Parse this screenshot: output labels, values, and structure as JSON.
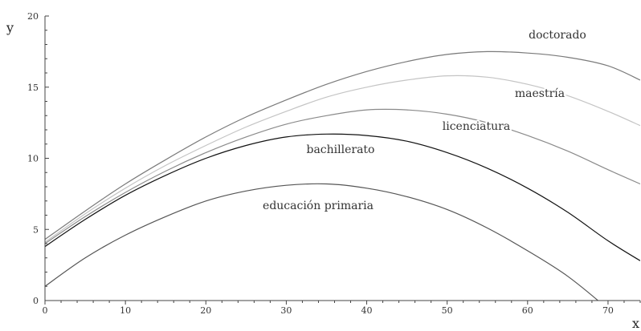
{
  "chart_data": {
    "type": "line",
    "title": "",
    "xlabel": "x",
    "ylabel": "y",
    "xlim": [
      0,
      74
    ],
    "ylim": [
      0,
      20
    ],
    "x_ticks": [
      0,
      10,
      20,
      30,
      40,
      50,
      60,
      70
    ],
    "y_ticks": [
      0,
      5,
      10,
      15,
      20
    ],
    "grid": false,
    "legend": "none",
    "series": [
      {
        "name": "doctorado",
        "color": "#7a7a7a",
        "x": [
          0,
          5,
          10,
          15,
          20,
          25,
          30,
          35,
          40,
          45,
          50,
          55,
          60,
          65,
          70,
          74
        ],
        "y": [
          4.3,
          6.3,
          8.2,
          9.9,
          11.5,
          12.9,
          14.1,
          15.2,
          16.1,
          16.8,
          17.3,
          17.5,
          17.4,
          17.1,
          16.5,
          15.5
        ]
      },
      {
        "name": "maestría",
        "color": "#c4c4c4",
        "x": [
          0,
          5,
          10,
          15,
          20,
          25,
          30,
          35,
          40,
          45,
          50,
          55,
          60,
          65,
          70,
          74
        ],
        "y": [
          4.1,
          6.1,
          7.9,
          9.5,
          10.9,
          12.2,
          13.3,
          14.3,
          15.0,
          15.5,
          15.8,
          15.7,
          15.2,
          14.4,
          13.3,
          12.3
        ]
      },
      {
        "name": "licenciatura",
        "color": "#8a8a8a",
        "x": [
          0,
          5,
          10,
          15,
          20,
          25,
          30,
          35,
          40,
          45,
          50,
          55,
          60,
          65,
          70,
          74
        ],
        "y": [
          4.0,
          5.9,
          7.6,
          9.1,
          10.4,
          11.5,
          12.4,
          13.0,
          13.4,
          13.4,
          13.1,
          12.5,
          11.6,
          10.5,
          9.2,
          8.2
        ]
      },
      {
        "name": "bachillerato",
        "color": "#111111",
        "x": [
          0,
          5,
          10,
          15,
          20,
          25,
          30,
          35,
          40,
          45,
          50,
          55,
          60,
          65,
          70,
          74
        ],
        "y": [
          3.8,
          5.7,
          7.4,
          8.8,
          10.0,
          10.9,
          11.5,
          11.7,
          11.6,
          11.2,
          10.4,
          9.3,
          7.9,
          6.2,
          4.2,
          2.8
        ]
      },
      {
        "name": "educación primaria",
        "color": "#555555",
        "x": [
          0,
          5,
          10,
          15,
          20,
          25,
          30,
          35,
          40,
          45,
          50,
          55,
          60,
          65,
          70,
          72
        ],
        "y": [
          1.0,
          3.0,
          4.6,
          5.9,
          7.0,
          7.7,
          8.1,
          8.2,
          7.9,
          7.3,
          6.4,
          5.1,
          3.5,
          1.7,
          -0.6,
          -1.7
        ]
      }
    ]
  }
}
